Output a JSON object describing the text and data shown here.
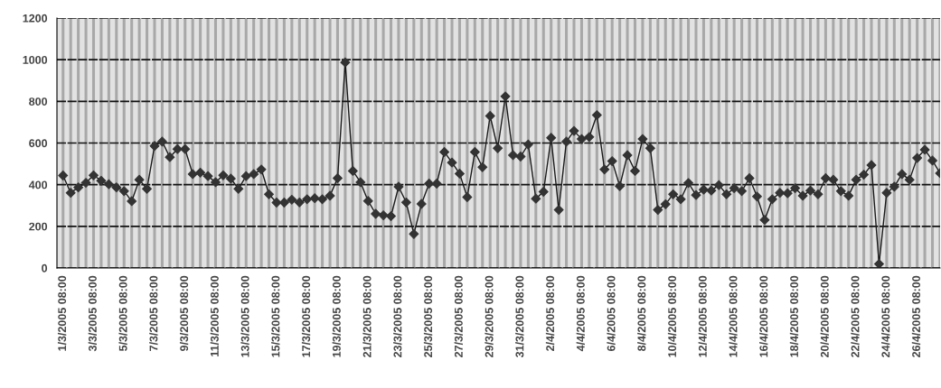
{
  "chart_data": {
    "type": "line",
    "categories": [
      "1/3/2005 08:00",
      null,
      null,
      null,
      "3/3/2005 08:00",
      null,
      null,
      null,
      "5/3/2005 08:00",
      null,
      null,
      null,
      "7/3/2005 08:00",
      null,
      null,
      null,
      "9/3/2005 08:00",
      null,
      null,
      null,
      "11/3/2005 08:00",
      null,
      null,
      null,
      "13/3/2005 08:00",
      null,
      null,
      null,
      "15/3/2005 08:00",
      null,
      null,
      null,
      "17/3/2005 08:00",
      null,
      null,
      null,
      "19/3/2005 08:00",
      null,
      null,
      null,
      "21/3/2005 08:00",
      null,
      null,
      null,
      "23/3/2005 08:00",
      null,
      null,
      null,
      "25/3/2005 08:00",
      null,
      null,
      null,
      "27/3/2005 08:00",
      null,
      null,
      null,
      "29/3/2005 08:00",
      null,
      null,
      null,
      "31/3/2005 08:00",
      null,
      null,
      null,
      "2/4/2005 08:00",
      null,
      null,
      null,
      "4/4/2005 08:00",
      null,
      null,
      null,
      "6/4/2005 08:00",
      null,
      null,
      null,
      "8/4/2005 08:00",
      null,
      null,
      null,
      "10/4/2005 08:00",
      null,
      null,
      null,
      "12/4/2005 08:00",
      null,
      null,
      null,
      "14/4/2005 08:00",
      null,
      null,
      null,
      "16/4/2005 08:00",
      null,
      null,
      null,
      "18/4/2005 08:00",
      null,
      null,
      null,
      "20/4/2005 08:00",
      null,
      null,
      null,
      "22/4/2005 08:00",
      null,
      null,
      null,
      "24/4/2005 08:00",
      null,
      null,
      null,
      "26/4/2005 08:00",
      null,
      null,
      null
    ],
    "series": [
      {
        "color": "#1a1a1a",
        "values": [
          444,
          361,
          387,
          409,
          445,
          419,
          402,
          387,
          369,
          321,
          424,
          380,
          586,
          607,
          532,
          571,
          571,
          451,
          458,
          441,
          412,
          445,
          429,
          380,
          441,
          451,
          473,
          354,
          314,
          314,
          328,
          315,
          330,
          335,
          330,
          347,
          431,
          987,
          466,
          412,
          322,
          260,
          253,
          249,
          390,
          315,
          163,
          308,
          405,
          405,
          557,
          506,
          453,
          340,
          557,
          484,
          730,
          575,
          824,
          542,
          535,
          593,
          333,
          366,
          625,
          279,
          607,
          658,
          619,
          629,
          734,
          473,
          513,
          393,
          542,
          466,
          619,
          575,
          279,
          306,
          354,
          330,
          408,
          350,
          376,
          372,
          398,
          354,
          383,
          369,
          431,
          343,
          231,
          330,
          361,
          359,
          383,
          347,
          372,
          354,
          431,
          424,
          369,
          347,
          424,
          448,
          494,
          19,
          361,
          390,
          451,
          424,
          528,
          568,
          516,
          455
        ]
      }
    ],
    "ylim": [
      0,
      1200
    ],
    "yticks": [
      0,
      200,
      400,
      600,
      800,
      1000,
      1200
    ],
    "grid": true,
    "marker": "diamond",
    "line_style": "solid"
  }
}
